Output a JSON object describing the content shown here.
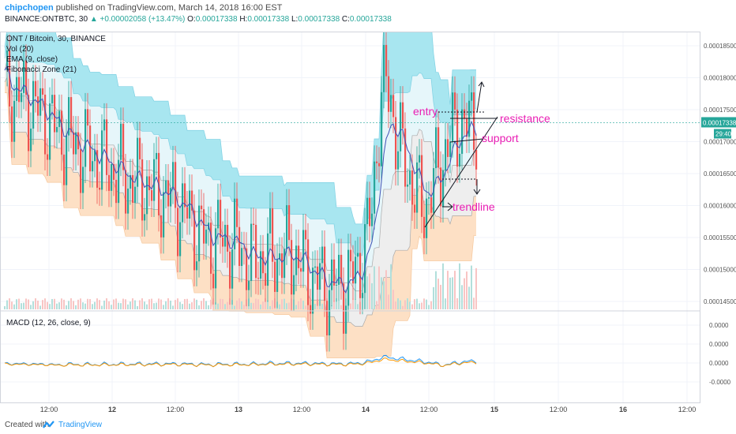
{
  "header": {
    "author": "chipchopen",
    "published_text": "published on TradingView.com, March 14, 2018 16:00 EST",
    "symbol": "BINANCE:ONTBTC, 30",
    "change": "▲ +0.00002058 (+13.47%)",
    "o_label": "O:",
    "o_value": "0.00017338",
    "h_label": "H:",
    "h_value": "0.00017338",
    "l_label": "L:",
    "l_value": "0.00017338",
    "c_label": "C:",
    "c_value": "0.00017338"
  },
  "legend": {
    "title": "ONT / Bitcoin, 30, BINANCE",
    "studies": [
      "Vol (20)",
      "EMA (9, close)",
      "Fibonacci Zone (21)"
    ]
  },
  "macd_label": "MACD (12, 26, close, 9)",
  "colors": {
    "up": "#26a69a",
    "down": "#ef5350",
    "pink": "#e91eb4",
    "ema": "#3f51b5",
    "fib_cyan": "#a8e6f0",
    "fib_orange": "#fde0c5",
    "macd": "#2196f3",
    "signal": "#ff9800"
  },
  "chart_data": {
    "type": "candlestick",
    "x_ticks": [
      "12:00",
      "12",
      "12:00",
      "13",
      "12:00",
      "14",
      "12:00",
      "15",
      "12:00",
      "16",
      "12:00"
    ],
    "y_ticks": [
      "0.00018500",
      "0.00018000",
      "0.00017500",
      "0.00017000",
      "0.00016500",
      "0.00016000",
      "0.00015500",
      "0.00015000",
      "0.00014500"
    ],
    "ylim": [
      0.0001445,
      0.0001865
    ],
    "last_price": "0.00017338",
    "countdown": "29:40",
    "macd_ticks": [
      "0.0000",
      "0.0000",
      "0.0000",
      "-0.0000"
    ],
    "annotations": [
      "entry",
      "resistance",
      "support",
      "trendline"
    ],
    "close_path": [
      [
        0,
        0.000178
      ],
      [
        6,
        0.0001775
      ],
      [
        12,
        0.000176
      ],
      [
        18,
        0.000174
      ],
      [
        22,
        0.000172
      ],
      [
        28,
        0.0001705
      ],
      [
        33,
        0.000169
      ],
      [
        38,
        0.000168
      ],
      [
        44,
        0.0001665
      ],
      [
        50,
        0.000165
      ],
      [
        55,
        0.000164
      ],
      [
        60,
        0.0001635
      ],
      [
        66,
        0.0001625
      ],
      [
        72,
        0.000161
      ],
      [
        77,
        0.000159
      ],
      [
        82,
        0.0001565
      ],
      [
        87,
        0.0001545
      ],
      [
        92,
        0.0001555
      ],
      [
        96,
        0.0001545
      ],
      [
        100,
        0.000154
      ],
      [
        104,
        0.0001515
      ],
      [
        108,
        0.0001525
      ],
      [
        113,
        0.0001525
      ],
      [
        118,
        0.000153
      ],
      [
        122,
        0.000153
      ],
      [
        126,
        0.000151
      ],
      [
        130,
        0.0001495
      ],
      [
        134,
        0.0001485
      ],
      [
        138,
        0.000148
      ],
      [
        142,
        0.0001482
      ],
      [
        146,
        0.000149
      ],
      [
        149,
        0.000151
      ],
      [
        152,
        0.000154
      ],
      [
        155,
        0.00016
      ],
      [
        157,
        0.00017
      ],
      [
        159,
        0.000177
      ],
      [
        161,
        0.000179
      ],
      [
        163,
        0.000177
      ],
      [
        165,
        0.000172
      ],
      [
        168,
        0.000168
      ],
      [
        171,
        0.000165
      ],
      [
        174,
        0.000162
      ],
      [
        177,
        0.0001605
      ],
      [
        180,
        0.000163
      ],
      [
        183,
        0.000166
      ],
      [
        186,
        0.000169
      ],
      [
        189,
        0.0001715
      ],
      [
        192,
        0.0001735
      ],
      [
        195,
        0.0001725
      ],
      [
        198,
        0.0001734
      ]
    ]
  }
}
